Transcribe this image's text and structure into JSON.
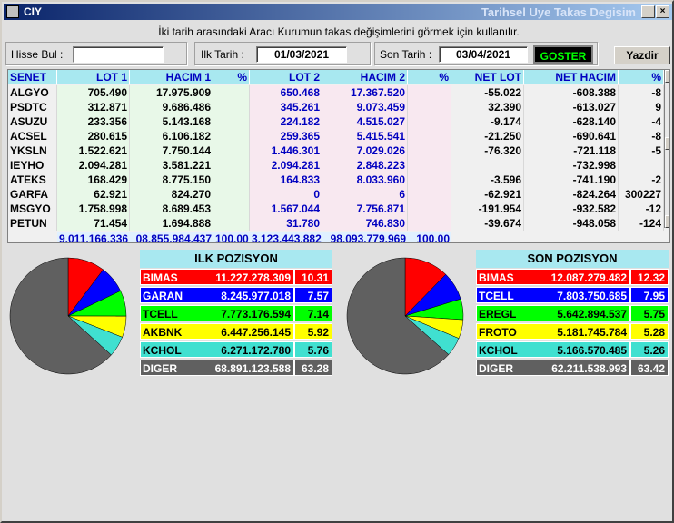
{
  "window": {
    "app_label": "CIY",
    "title": "Tarihsel Uye Takas Degisim"
  },
  "description": "İki tarih arasındaki  Aracı Kurumun takas değişimlerini görmek için kullanılır.",
  "filters": {
    "hisse_label": "Hisse Bul :",
    "hisse_value": "",
    "ilk_label": "Ilk Tarih :",
    "ilk_value": "01/03/2021",
    "son_label": "Son Tarih :",
    "son_value": "03/04/2021",
    "goster_label": "GOSTER",
    "yazdir_label": "Yazdir"
  },
  "table": {
    "headers": [
      "SENET",
      "LOT 1",
      "HACIM 1",
      "%",
      "LOT 2",
      "HACIM 2",
      "%",
      "NET LOT",
      "NET HACIM",
      "%"
    ],
    "rows": [
      [
        "ALGYO",
        "705.490",
        "17.975.909",
        "",
        "650.468",
        "17.367.520",
        "",
        "-55.022",
        "-608.388",
        "-8"
      ],
      [
        "PSDTC",
        "312.871",
        "9.686.486",
        "",
        "345.261",
        "9.073.459",
        "",
        "32.390",
        "-613.027",
        "9"
      ],
      [
        "ASUZU",
        "233.356",
        "5.143.168",
        "",
        "224.182",
        "4.515.027",
        "",
        "-9.174",
        "-628.140",
        "-4"
      ],
      [
        "ACSEL",
        "280.615",
        "6.106.182",
        "",
        "259.365",
        "5.415.541",
        "",
        "-21.250",
        "-690.641",
        "-8"
      ],
      [
        "YKSLN",
        "1.522.621",
        "7.750.144",
        "",
        "1.446.301",
        "7.029.026",
        "",
        "-76.320",
        "-721.118",
        "-5"
      ],
      [
        "IEYHO",
        "2.094.281",
        "3.581.221",
        "",
        "2.094.281",
        "2.848.223",
        "",
        "",
        "-732.998",
        ""
      ],
      [
        "ATEKS",
        "168.429",
        "8.775.150",
        "",
        "164.833",
        "8.033.960",
        "",
        "-3.596",
        "-741.190",
        "-2"
      ],
      [
        "GARFA",
        "62.921",
        "824.270",
        "",
        "0",
        "6",
        "",
        "-62.921",
        "-824.264",
        "300227"
      ],
      [
        "MSGYO",
        "1.758.998",
        "8.689.453",
        "",
        "1.567.044",
        "7.756.871",
        "",
        "-191.954",
        "-932.582",
        "-12"
      ],
      [
        "PETUN",
        "71.454",
        "1.694.888",
        "",
        "31.780",
        "746.830",
        "",
        "-39.674",
        "-948.058",
        "-124"
      ]
    ],
    "totals": [
      "",
      "9.011.166.336",
      "08.855.984.437",
      "100,00",
      "3.123.443.882",
      "98.093.779.969",
      "100,00",
      "",
      "",
      ""
    ]
  },
  "ilk_pozisyon": {
    "title": "ILK POZISYON",
    "rows": [
      {
        "name": "BIMAS",
        "value": "11.227.278.309",
        "pct": "10.31",
        "pct_num": 10.31,
        "bg": "#ff0000",
        "fg": "#ffffff"
      },
      {
        "name": "GARAN",
        "value": "8.245.977.018",
        "pct": "7.57",
        "pct_num": 7.57,
        "bg": "#0000ff",
        "fg": "#ffffff"
      },
      {
        "name": "TCELL",
        "value": "7.773.176.594",
        "pct": "7.14",
        "pct_num": 7.14,
        "bg": "#00ff00",
        "fg": "#000000"
      },
      {
        "name": "AKBNK",
        "value": "6.447.256.145",
        "pct": "5.92",
        "pct_num": 5.92,
        "bg": "#ffff00",
        "fg": "#000000"
      },
      {
        "name": "KCHOL",
        "value": "6.271.172.780",
        "pct": "5.76",
        "pct_num": 5.76,
        "bg": "#40e0d0",
        "fg": "#000000"
      },
      {
        "name": "DIGER",
        "value": "68.891.123.588",
        "pct": "63.28",
        "pct_num": 63.28,
        "bg": "#606060",
        "fg": "#ffffff"
      }
    ]
  },
  "son_pozisyon": {
    "title": "SON POZISYON",
    "rows": [
      {
        "name": "BIMAS",
        "value": "12.087.279.482",
        "pct": "12.32",
        "pct_num": 12.32,
        "bg": "#ff0000",
        "fg": "#ffffff"
      },
      {
        "name": "TCELL",
        "value": "7.803.750.685",
        "pct": "7.95",
        "pct_num": 7.95,
        "bg": "#0000ff",
        "fg": "#ffffff"
      },
      {
        "name": "EREGL",
        "value": "5.642.894.537",
        "pct": "5.75",
        "pct_num": 5.75,
        "bg": "#00ff00",
        "fg": "#000000"
      },
      {
        "name": "FROTO",
        "value": "5.181.745.784",
        "pct": "5.28",
        "pct_num": 5.28,
        "bg": "#ffff00",
        "fg": "#000000"
      },
      {
        "name": "KCHOL",
        "value": "5.166.570.485",
        "pct": "5.26",
        "pct_num": 5.26,
        "bg": "#40e0d0",
        "fg": "#000000"
      },
      {
        "name": "DIGER",
        "value": "62.211.538.993",
        "pct": "63.42",
        "pct_num": 63.42,
        "bg": "#606060",
        "fg": "#ffffff"
      }
    ]
  }
}
